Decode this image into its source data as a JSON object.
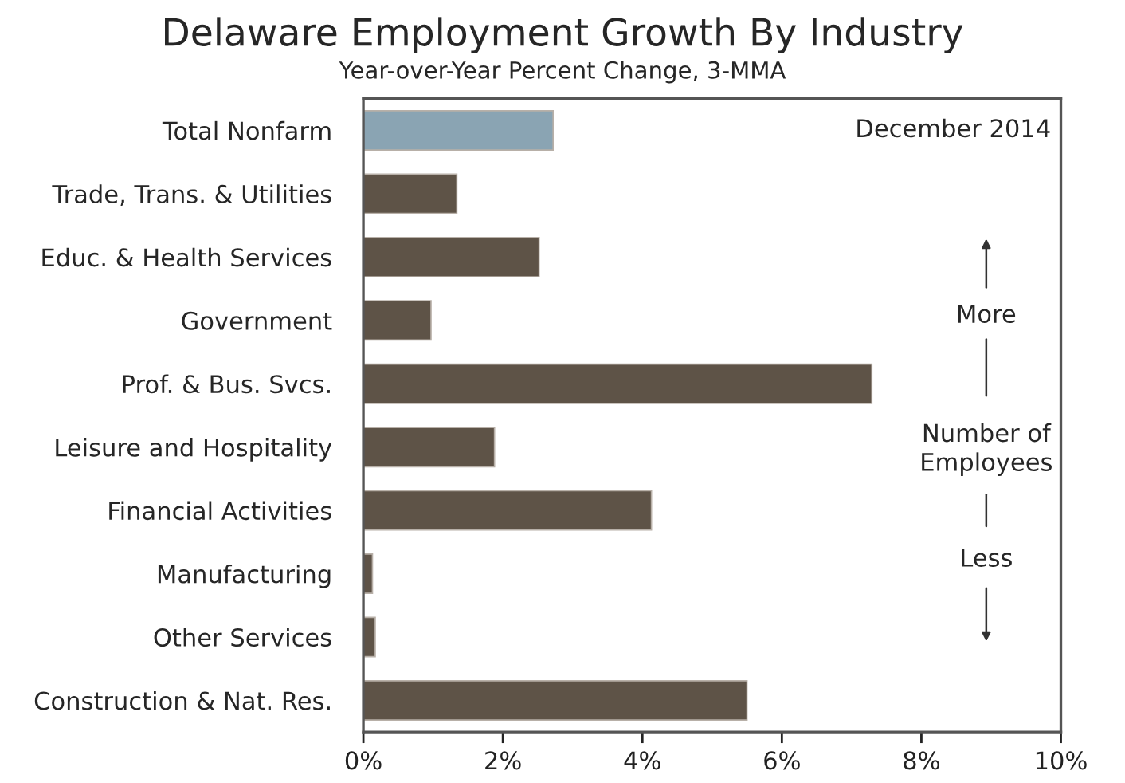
{
  "chart_data": {
    "type": "bar",
    "orientation": "horizontal",
    "title": "Delaware Employment Growth By Industry",
    "subtitle": "Year-over-Year Percent Change, 3-MMA",
    "categories": [
      "Total Nonfarm",
      "Trade, Trans. & Utilities",
      "Educ. & Health Services",
      "Government",
      "Prof. & Bus. Svcs.",
      "Leisure and Hospitality",
      "Financial Activities",
      "Manufacturing",
      "Other Services",
      "Construction & Nat. Res."
    ],
    "values": [
      2.72,
      1.34,
      2.52,
      0.97,
      7.29,
      1.88,
      4.13,
      0.13,
      0.17,
      5.5
    ],
    "colors": [
      "#8aa4b3",
      "#5e5347",
      "#5e5347",
      "#5e5347",
      "#5e5347",
      "#5e5347",
      "#5e5347",
      "#5e5347",
      "#5e5347",
      "#5e5347"
    ],
    "xlim": [
      0,
      10
    ],
    "xticks": [
      {
        "value": 0,
        "label": "0%"
      },
      {
        "value": 2,
        "label": "2%"
      },
      {
        "value": 4,
        "label": "4%"
      },
      {
        "value": 6,
        "label": "6%"
      },
      {
        "value": 8,
        "label": "8%"
      },
      {
        "value": 10,
        "label": "10%"
      }
    ],
    "annotations": [
      "December 2014",
      "More",
      "Number of\nEmployees",
      "Less"
    ],
    "grid": false,
    "legend": false
  }
}
